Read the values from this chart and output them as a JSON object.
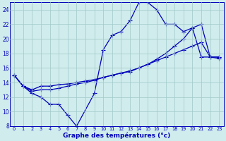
{
  "xlabel": "Graphe des températures (°c)",
  "line1_x": [
    0,
    1,
    2,
    3,
    4,
    5,
    6,
    7,
    9,
    10,
    11,
    12,
    13,
    14,
    15,
    16,
    17,
    18,
    19,
    20,
    21,
    22,
    23
  ],
  "line1_y": [
    15.0,
    13.5,
    12.5,
    12.0,
    11.0,
    11.0,
    9.5,
    8.0,
    12.5,
    18.5,
    20.5,
    21.0,
    22.5,
    25.0,
    25.0,
    24.0,
    22.0,
    22.0,
    21.0,
    21.5,
    17.5,
    17.5,
    17.5
  ],
  "line2_x": [
    0,
    1,
    2,
    3,
    4,
    5,
    6,
    7,
    8,
    9,
    10,
    11,
    12,
    13,
    14,
    15,
    16,
    17,
    18,
    19,
    20,
    21,
    22,
    23
  ],
  "line2_y": [
    15.0,
    13.5,
    13.0,
    13.5,
    13.5,
    13.7,
    13.8,
    14.0,
    14.2,
    14.4,
    14.7,
    15.0,
    15.3,
    15.6,
    16.0,
    16.5,
    17.2,
    18.0,
    19.0,
    20.0,
    21.5,
    22.0,
    17.5,
    17.5
  ],
  "line3_x": [
    0,
    1,
    2,
    3,
    4,
    5,
    6,
    7,
    8,
    9,
    10,
    11,
    12,
    13,
    14,
    15,
    16,
    17,
    18,
    19,
    20,
    21,
    22,
    23
  ],
  "line3_y": [
    15.0,
    13.5,
    12.8,
    13.0,
    13.0,
    13.2,
    13.5,
    13.8,
    14.0,
    14.3,
    14.7,
    15.0,
    15.3,
    15.5,
    16.0,
    16.5,
    17.0,
    17.5,
    18.0,
    18.5,
    19.0,
    19.5,
    17.5,
    17.3
  ],
  "bg_color": "#d0ecec",
  "line_color": "#0000bb",
  "grid_color": "#a0c8c8",
  "ylim_min": 8,
  "ylim_max": 25,
  "xlim_min": -0.5,
  "xlim_max": 23.5,
  "yticks": [
    8,
    10,
    12,
    14,
    16,
    18,
    20,
    22,
    24
  ],
  "xticks": [
    0,
    1,
    2,
    3,
    4,
    5,
    6,
    7,
    8,
    9,
    10,
    11,
    12,
    13,
    14,
    15,
    16,
    17,
    18,
    19,
    20,
    21,
    22,
    23
  ],
  "marker_size": 2.2,
  "line_width": 0.9,
  "xlabel_fontsize": 6.5,
  "ytick_fontsize": 5.5,
  "xtick_fontsize": 4.8
}
